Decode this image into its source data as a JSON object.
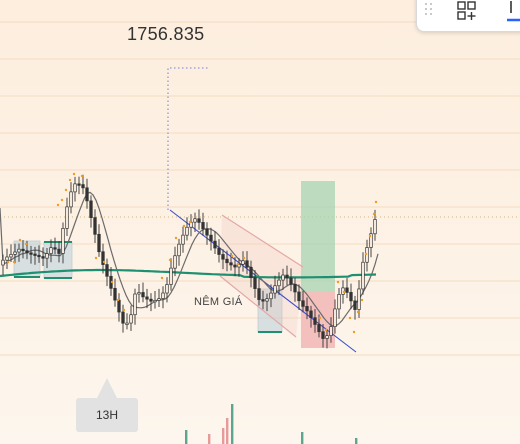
{
  "chart": {
    "price_readout": "1756.835",
    "annotation": "NÊM GIÁ",
    "time_label": "13H"
  },
  "toolbar": {
    "drag_handle_icon": "drag-dots-icon",
    "object_tree_icon": "add-grid-icon",
    "line_tool_icon": "line-tool-icon"
  },
  "colors": {
    "background_top": "#fdf3e6",
    "background_bottom": "#fdf6ec",
    "candle": "#333333",
    "ma_fast": "#6b6b6b",
    "ma_slow": "#1e8f70",
    "channel_red": "#e3a7a7",
    "channel_blue": "#3a4fd0",
    "target_zone": "#a7d3b2",
    "stop_zone": "#f1b3b3",
    "toolbar_accent": "#2962ff",
    "guide_dots": "#6e7fd6",
    "current_price_line": "#d4b27a"
  }
}
